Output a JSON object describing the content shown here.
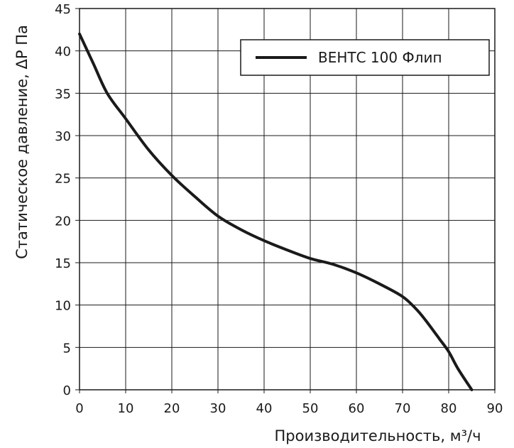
{
  "chart_data": {
    "type": "line",
    "title": "",
    "xlabel": "Производительность, м³/ч",
    "ylabel": "Статическое давление, ΔP Па",
    "xlim": [
      0,
      90
    ],
    "ylim": [
      0,
      45
    ],
    "x_ticks": [
      "0",
      "10",
      "20",
      "30",
      "40",
      "50",
      "60",
      "70",
      "80",
      "90"
    ],
    "y_ticks": [
      "0",
      "5",
      "10",
      "15",
      "20",
      "25",
      "30",
      "35",
      "40",
      "45"
    ],
    "grid": true,
    "legend_position": "top-right",
    "series": [
      {
        "name": "ВЕНТС 100 Флип",
        "color": "#1a1a1a",
        "x": [
          0,
          3,
          6,
          10,
          15,
          20,
          25,
          30,
          35,
          40,
          45,
          50,
          55,
          60,
          65,
          70,
          73,
          75,
          78,
          80,
          82,
          85
        ],
        "y": [
          42,
          38.5,
          35,
          32,
          28.3,
          25.3,
          22.8,
          20.5,
          18.9,
          17.6,
          16.5,
          15.5,
          14.8,
          13.8,
          12.5,
          11,
          9.5,
          8.2,
          6,
          4.5,
          2.5,
          0
        ]
      }
    ]
  }
}
